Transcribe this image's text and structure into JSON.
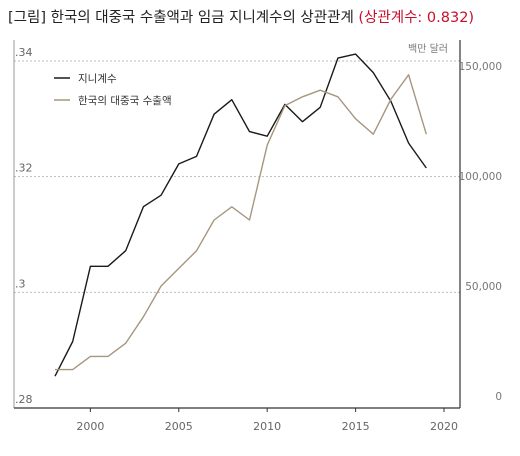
{
  "title": {
    "main": "[그림] 한국의 대중국 수출액과 임금 지니계수의 상관관계",
    "highlight": "(상관계수: 0.832)"
  },
  "chart_data": {
    "type": "line",
    "title": "[그림] 한국의 대중국 수출액과 임금 지니계수의 상관관계 (상관계수: 0.832)",
    "x_ticks": [
      "2000",
      "2005",
      "2010",
      "2015",
      "2020"
    ],
    "xlim": [
      1997,
      2021
    ],
    "y_left": {
      "ticks": [
        ".28",
        ".3",
        ".32",
        ".34"
      ],
      "ylim": [
        0.28,
        0.342
      ]
    },
    "y_right": {
      "unit": "백만 달러",
      "ticks": [
        "0",
        "50,000",
        "100,000",
        "150,000"
      ],
      "ylim": [
        0,
        152000
      ]
    },
    "series": [
      {
        "name": "지니계수",
        "axis": "left",
        "color": "#1a1a1a",
        "x": [
          1998,
          1999,
          2000,
          2001,
          2002,
          2003,
          2004,
          2005,
          2006,
          2007,
          2008,
          2009,
          2010,
          2011,
          2012,
          2013,
          2014,
          2015,
          2016,
          2017,
          2018,
          2019
        ],
        "y": [
          0.2855,
          0.2915,
          0.3045,
          0.3045,
          0.3072,
          0.3148,
          0.3168,
          0.3222,
          0.3235,
          0.3308,
          0.3333,
          0.3278,
          0.327,
          0.3325,
          0.3295,
          0.332,
          0.3405,
          0.3412,
          0.338,
          0.333,
          0.3258,
          0.3215
        ]
      },
      {
        "name": "한국의 대중국 수출액",
        "axis": "right",
        "color": "#a69680",
        "x": [
          1998,
          1999,
          2000,
          2001,
          2002,
          2003,
          2004,
          2005,
          2006,
          2007,
          2008,
          2009,
          2010,
          2011,
          2012,
          2013,
          2014,
          2015,
          2016,
          2017,
          2018,
          2019
        ],
        "y": [
          12000,
          12000,
          18000,
          18000,
          24000,
          36000,
          50000,
          58000,
          66000,
          80000,
          86000,
          80000,
          114000,
          132000,
          136000,
          139000,
          136000,
          126000,
          119000,
          135000,
          146000,
          119000
        ]
      }
    ],
    "legend": "top-left",
    "grid": "horizontal dashed"
  }
}
